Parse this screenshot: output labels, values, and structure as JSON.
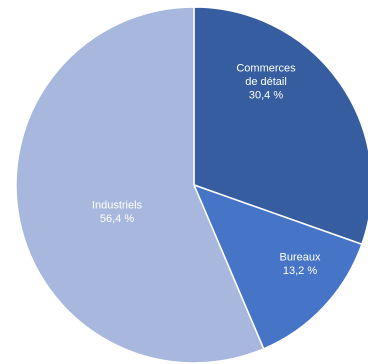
{
  "chart_data": {
    "type": "pie",
    "title": "",
    "start_angle_deg": 0,
    "direction": "clockwise",
    "legend": "none",
    "slices": [
      {
        "id": "commerces",
        "label_lines": [
          "Commerces",
          "de détail"
        ],
        "value": 30.4,
        "value_text": "30,4 %",
        "color": "#355d9f"
      },
      {
        "id": "bureaux",
        "label_lines": [
          "Bureaux"
        ],
        "value": 13.2,
        "value_text": "13,2 %",
        "color": "#4674c7"
      },
      {
        "id": "industriels",
        "label_lines": [
          "Industriels"
        ],
        "value": 56.4,
        "value_text": "56,4 %",
        "color": "#a8b7de"
      }
    ]
  }
}
